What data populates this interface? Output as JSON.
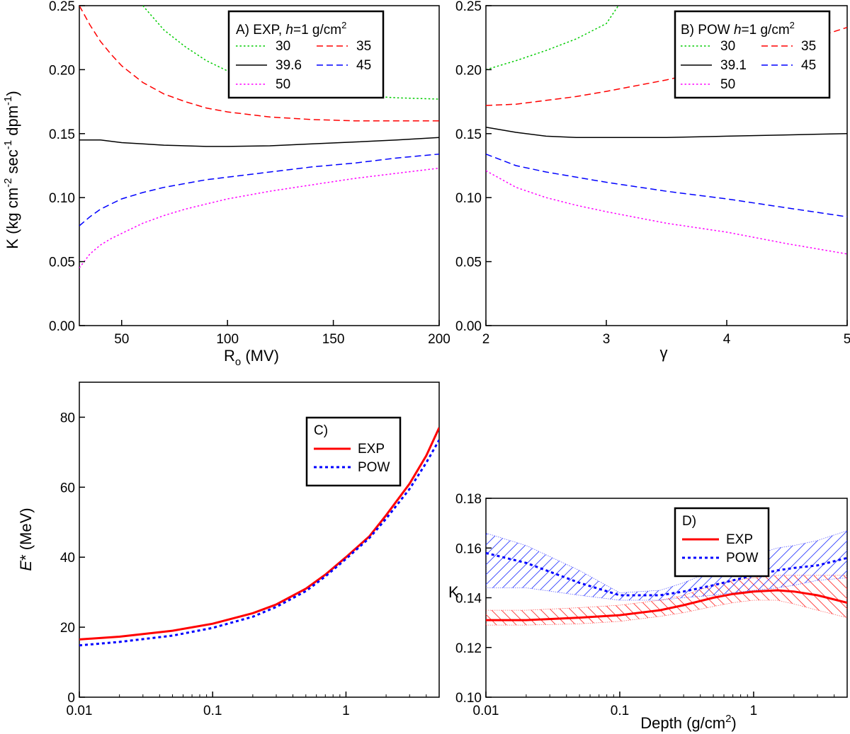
{
  "chart_data": [
    {
      "panel": "A",
      "type": "line",
      "legend_title_prefix": "A) EXP, ",
      "legend_title_italic": "h",
      "legend_title_suffix": "=1 g/cm",
      "legend_title_sup": "2",
      "legend_placement": "top-right",
      "xlabel_main": "R",
      "xlabel_sub": "o",
      "xlabel_suffix": " (MV)",
      "ylabel": "K (kg cm-2 sec-1 dpm-1)",
      "ylabel_parts": [
        "K (kg cm",
        "-2",
        " sec",
        "-1",
        " dpm",
        "-1",
        ")"
      ],
      "xlim": [
        30,
        200
      ],
      "ylim": [
        0,
        0.25
      ],
      "xticks": [
        "50",
        "100",
        "150",
        "200"
      ],
      "yticks": [
        "0.00",
        "0.05",
        "0.10",
        "0.15",
        "0.20",
        "0.25"
      ],
      "series": [
        {
          "name": "30",
          "color": "#00cc00",
          "dash": "dot",
          "x": [
            60,
            70,
            80,
            90,
            100,
            120,
            140,
            160,
            180,
            200
          ],
          "y": [
            0.25,
            0.231,
            0.218,
            0.207,
            0.199,
            0.19,
            0.184,
            0.18,
            0.178,
            0.177
          ]
        },
        {
          "name": "35",
          "color": "#ff0000",
          "dash": "dash",
          "x": [
            30,
            35,
            40,
            45,
            50,
            60,
            70,
            80,
            90,
            100,
            120,
            140,
            160,
            180,
            200
          ],
          "y": [
            0.25,
            0.235,
            0.222,
            0.212,
            0.203,
            0.19,
            0.181,
            0.175,
            0.17,
            0.167,
            0.163,
            0.161,
            0.16,
            0.16,
            0.16
          ]
        },
        {
          "name": "39.6",
          "color": "#000000",
          "dash": "solid",
          "x": [
            30,
            40,
            50,
            60,
            70,
            80,
            90,
            100,
            120,
            140,
            160,
            180,
            200
          ],
          "y": [
            0.145,
            0.145,
            0.143,
            0.142,
            0.141,
            0.1405,
            0.14,
            0.14,
            0.1405,
            0.142,
            0.1435,
            0.145,
            0.147
          ]
        },
        {
          "name": "45",
          "color": "#0000ff",
          "dash": "dash",
          "x": [
            30,
            35,
            40,
            45,
            50,
            60,
            70,
            80,
            90,
            100,
            120,
            140,
            160,
            180,
            200
          ],
          "y": [
            0.078,
            0.085,
            0.091,
            0.095,
            0.099,
            0.104,
            0.108,
            0.111,
            0.114,
            0.116,
            0.12,
            0.124,
            0.127,
            0.131,
            0.134
          ]
        },
        {
          "name": "50",
          "color": "#ff00ff",
          "dash": "dot",
          "x": [
            30,
            35,
            40,
            45,
            50,
            60,
            70,
            80,
            90,
            100,
            120,
            140,
            160,
            180,
            200
          ],
          "y": [
            0.045,
            0.056,
            0.063,
            0.068,
            0.072,
            0.08,
            0.086,
            0.091,
            0.095,
            0.099,
            0.105,
            0.11,
            0.115,
            0.119,
            0.123
          ]
        }
      ]
    },
    {
      "panel": "B",
      "type": "line",
      "legend_title_prefix": "B) POW ",
      "legend_title_italic": "h",
      "legend_title_suffix": "=1 g/cm",
      "legend_title_sup": "2",
      "legend_placement": "top-right",
      "xlabel": "γ",
      "xlim": [
        2,
        5
      ],
      "ylim": [
        0,
        0.25
      ],
      "xticks": [
        "2",
        "3",
        "4",
        "5"
      ],
      "yticks": [
        "0.00",
        "0.05",
        "0.10",
        "0.15",
        "0.20",
        "0.25"
      ],
      "series": [
        {
          "name": "30",
          "color": "#00cc00",
          "dash": "dot",
          "x": [
            2,
            2.25,
            2.5,
            2.75,
            3,
            3.1
          ],
          "y": [
            0.2,
            0.207,
            0.215,
            0.224,
            0.236,
            0.25
          ]
        },
        {
          "name": "35",
          "color": "#ff0000",
          "dash": "dash",
          "x": [
            2,
            2.25,
            2.5,
            2.75,
            3,
            3.5,
            4,
            4.5,
            5
          ],
          "y": [
            0.172,
            0.173,
            0.176,
            0.179,
            0.183,
            0.192,
            0.203,
            0.218,
            0.233
          ]
        },
        {
          "name": "39.1",
          "color": "#000000",
          "dash": "solid",
          "x": [
            2,
            2.25,
            2.5,
            2.75,
            3,
            3.5,
            4,
            4.5,
            5
          ],
          "y": [
            0.155,
            0.151,
            0.148,
            0.147,
            0.147,
            0.147,
            0.148,
            0.149,
            0.15
          ]
        },
        {
          "name": "45",
          "color": "#0000ff",
          "dash": "dash",
          "x": [
            2,
            2.25,
            2.5,
            2.75,
            3,
            3.5,
            4,
            4.5,
            5
          ],
          "y": [
            0.134,
            0.125,
            0.12,
            0.116,
            0.112,
            0.105,
            0.099,
            0.092,
            0.085
          ]
        },
        {
          "name": "50",
          "color": "#ff00ff",
          "dash": "dot",
          "x": [
            2,
            2.25,
            2.5,
            2.75,
            3,
            3.5,
            4,
            4.5,
            5
          ],
          "y": [
            0.121,
            0.108,
            0.1,
            0.094,
            0.089,
            0.08,
            0.073,
            0.064,
            0.056
          ]
        }
      ]
    },
    {
      "panel": "C",
      "type": "line",
      "legend_title": "C)",
      "legend_placement": "top-right",
      "xscale": "log",
      "xlim": [
        0.01,
        5
      ],
      "ylim": [
        0,
        90
      ],
      "ylabel_italic": "E",
      "ylabel_suffix": "* (MeV)",
      "xticks": [
        {
          "v": 0.01,
          "label": "0.01"
        },
        {
          "v": 0.1,
          "label": "0.1"
        },
        {
          "v": 1,
          "label": "1"
        }
      ],
      "yticks": [
        "0",
        "20",
        "40",
        "60",
        "80"
      ],
      "series": [
        {
          "name": "EXP",
          "color": "#ff0000",
          "dash": "solid",
          "x": [
            0.01,
            0.02,
            0.05,
            0.1,
            0.2,
            0.3,
            0.5,
            0.7,
            1,
            1.5,
            2,
            3,
            4,
            5
          ],
          "y": [
            16.5,
            17.3,
            19,
            21,
            24,
            26.5,
            31,
            35,
            40,
            46,
            52,
            61,
            69,
            77
          ]
        },
        {
          "name": "POW",
          "color": "#0000ff",
          "dash": "dot",
          "x": [
            0.01,
            0.02,
            0.05,
            0.1,
            0.2,
            0.3,
            0.5,
            0.7,
            1,
            1.5,
            2,
            3,
            4,
            5
          ],
          "y": [
            14.8,
            15.8,
            17.6,
            19.8,
            23,
            25.8,
            30.3,
            34.5,
            39.5,
            45.5,
            51,
            59.5,
            67,
            73.5
          ]
        }
      ]
    },
    {
      "panel": "D",
      "type": "line",
      "legend_title": "D)",
      "legend_placement": "top-right",
      "xscale": "log",
      "xlim": [
        0.01,
        5
      ],
      "ylim": [
        0.1,
        0.18
      ],
      "xlabel_prefix": "Depth (g/cm",
      "xlabel_sup": "2",
      "xlabel_suffix": ")",
      "ylabel": "K",
      "xticks": [
        {
          "v": 0.01,
          "label": "0.01"
        },
        {
          "v": 0.1,
          "label": "0.1"
        },
        {
          "v": 1,
          "label": "1"
        }
      ],
      "yticks": [
        "0.10",
        "0.12",
        "0.14",
        "0.16",
        "0.18"
      ],
      "series": [
        {
          "name": "EXP",
          "color": "#ff0000",
          "dash": "solid",
          "x": [
            0.01,
            0.02,
            0.05,
            0.1,
            0.2,
            0.3,
            0.5,
            0.7,
            1,
            1.5,
            2,
            3,
            5
          ],
          "y": [
            0.131,
            0.131,
            0.132,
            0.133,
            0.135,
            0.137,
            0.14,
            0.1415,
            0.1425,
            0.143,
            0.1425,
            0.141,
            0.138
          ],
          "upper": [
            0.135,
            0.135,
            0.136,
            0.137,
            0.139,
            0.141,
            0.145,
            0.147,
            0.148,
            0.149,
            0.149,
            0.149,
            0.149
          ],
          "lower": [
            0.129,
            0.129,
            0.1295,
            0.1305,
            0.1325,
            0.134,
            0.1365,
            0.138,
            0.139,
            0.139,
            0.1375,
            0.135,
            0.132
          ]
        },
        {
          "name": "POW",
          "color": "#0000ff",
          "dash": "dot",
          "x": [
            0.01,
            0.02,
            0.05,
            0.1,
            0.2,
            0.3,
            0.5,
            0.7,
            1,
            1.5,
            2,
            3,
            5
          ],
          "y": [
            0.158,
            0.154,
            0.146,
            0.141,
            0.141,
            0.1425,
            0.145,
            0.147,
            0.149,
            0.151,
            0.152,
            0.153,
            0.156
          ],
          "upper": [
            0.166,
            0.161,
            0.151,
            0.142,
            0.143,
            0.146,
            0.151,
            0.154,
            0.157,
            0.16,
            0.161,
            0.163,
            0.167
          ],
          "lower": [
            0.144,
            0.144,
            0.141,
            0.139,
            0.139,
            0.14,
            0.141,
            0.142,
            0.143,
            0.144,
            0.145,
            0.147,
            0.148
          ]
        }
      ]
    }
  ]
}
